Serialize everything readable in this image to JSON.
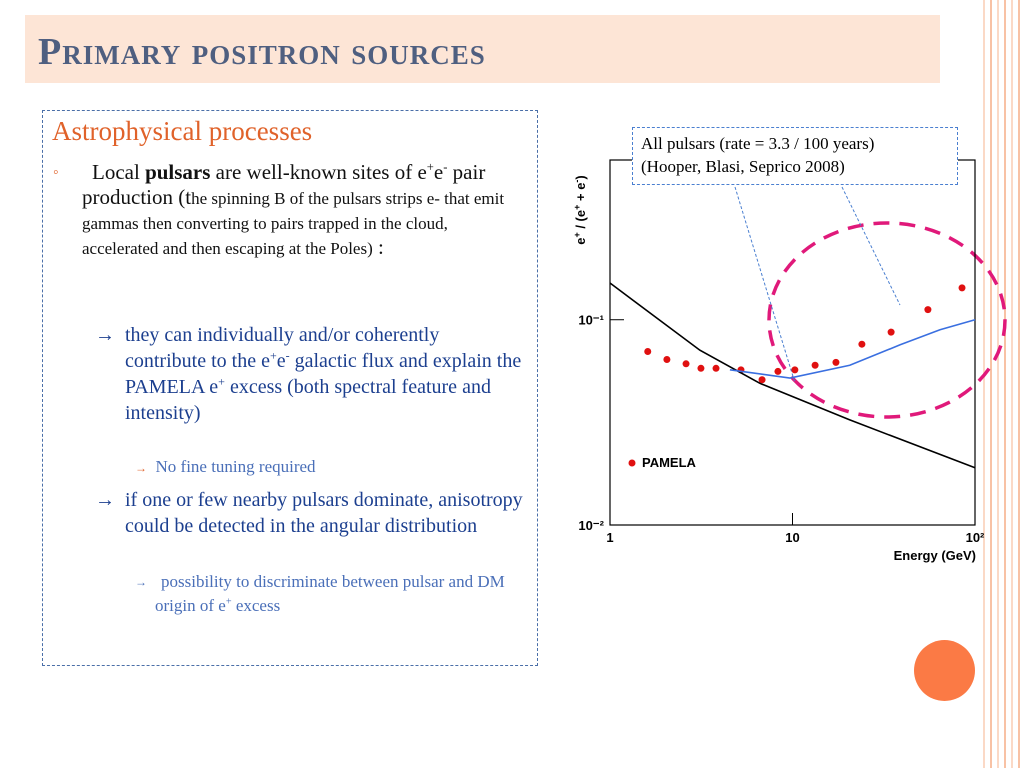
{
  "slide": {
    "title": "Primary positron sources",
    "heading": "Astrophysical processes",
    "bullet1": [
      "Local ",
      "pulsars",
      " are well-known sites of e",
      "+",
      "e",
      "-",
      " pair production (t",
      "he spinning B of the pulsars strips e- that emit gammas then converting to pairs trapped in the cloud, accelerated and then escaping at the Poles)",
      " :"
    ],
    "sub1": [
      "they can individually and/or coherently contribute to the e",
      "+",
      "e",
      "-",
      " galactic flux and explain the PAMELA e",
      "+",
      " excess (both spectral feature and intensity)"
    ],
    "sub1a": "No fine tuning required",
    "sub2": "if one or few nearby pulsars dominate, anisotropy could be detected in the angular distribution",
    "sub2a": [
      "possibility to discriminate between pulsar and DM origin of e",
      "+",
      " excess"
    ],
    "callout": [
      "All pulsars (rate = 3.3 / 100 years)",
      "(Hooper, Blasi, Seprico 2008)"
    ]
  },
  "chart_data": {
    "type": "scatter",
    "xlabel": "Energy (GeV)",
    "ylabel": [
      "e",
      "+",
      " / (e",
      "+",
      " + e",
      "-",
      ")"
    ],
    "xlim": [
      1,
      100
    ],
    "ylim": [
      0.01,
      0.6
    ],
    "xscale": "log",
    "yscale": "log",
    "xticks": [
      1,
      10,
      {
        "value": 100,
        "label": "10²"
      }
    ],
    "yticks": [
      {
        "value": 0.01,
        "label": "10⁻²"
      },
      {
        "value": 0.1,
        "label": "10⁻¹"
      }
    ],
    "legend": "lower left",
    "series": [
      {
        "name": "PAMELA",
        "color": "#e01010",
        "x": [
          1.61,
          2.05,
          2.61,
          3.15,
          3.81,
          5.22,
          6.81,
          8.32,
          10.3,
          13.3,
          17.3,
          24.0,
          34.7,
          55.2,
          84.9
        ],
        "values": [
          0.07,
          0.064,
          0.061,
          0.058,
          0.058,
          0.057,
          0.051,
          0.056,
          0.057,
          0.06,
          0.062,
          0.076,
          0.087,
          0.112,
          0.143
        ]
      },
      {
        "mode": "line",
        "color": "#000000",
        "x": [
          1,
          3.11,
          6.63,
          20.6,
          100
        ],
        "values": [
          0.151,
          0.071,
          0.049,
          0.0325,
          0.019
        ]
      },
      {
        "mode": "line",
        "color": "#3a6fe0",
        "x": [
          4.54,
          9.68,
          20.6,
          38.9,
          64.3,
          100
        ],
        "values": [
          0.057,
          0.052,
          0.06,
          0.0755,
          0.0894,
          0.1
        ]
      }
    ]
  }
}
